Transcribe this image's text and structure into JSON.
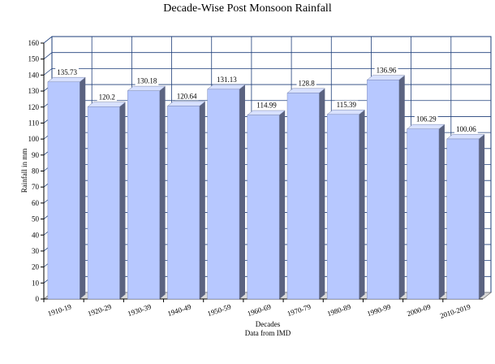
{
  "chart_data": {
    "type": "bar",
    "title": "Decade-Wise Post Monsoon Rainfall",
    "xlabel": "Decades",
    "subtitle": "Data from IMD",
    "ylabel": "Rainfall in mm",
    "ylim": [
      0,
      160
    ],
    "ytick_step": 10,
    "grid": true,
    "categories": [
      "1910-19",
      "1920-29",
      "1930-39",
      "1940-49",
      "1950-59",
      "1960-69",
      "1970-79",
      "1980-89",
      "1990-99",
      "2000-09",
      "2010-2019"
    ],
    "values": [
      135.73,
      120.2,
      130.18,
      120.64,
      131.13,
      114.99,
      128.8,
      115.39,
      136.96,
      106.29,
      100.06
    ],
    "data_labels": [
      "135.73",
      "120.2",
      "130.18",
      "120.64",
      "131.13",
      "114.99",
      "128.8",
      "115.39",
      "136.96",
      "106.29",
      "100.06"
    ],
    "colors": {
      "bar_front": "#b7c8ff",
      "bar_side": "#5b6380",
      "bar_top": "#d8e1ff",
      "grid": "#1f3f7a",
      "wall": "#ffffff"
    }
  }
}
